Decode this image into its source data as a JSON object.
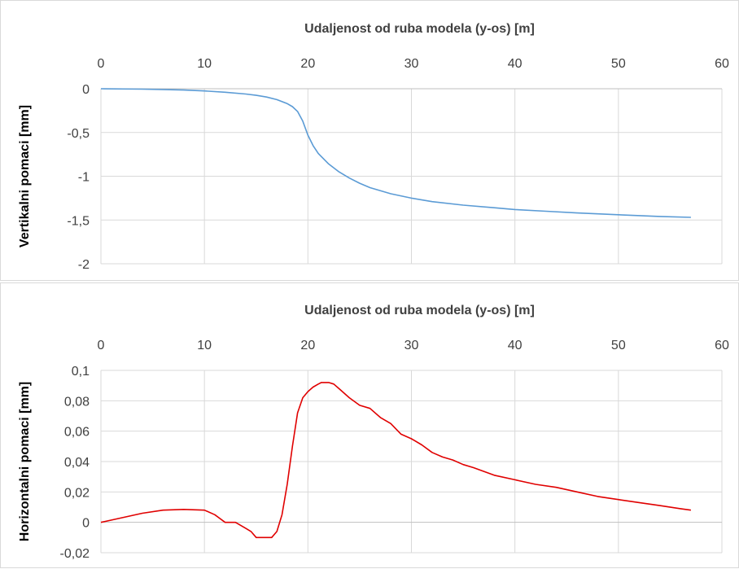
{
  "chart_data": [
    {
      "type": "line",
      "title": "Udaljenost od ruba modela (y-os) [m]",
      "xlabel": "Udaljenost od ruba modela (y-os) [m]",
      "ylabel": "Vertikalni pomaci [mm]",
      "x_axis_position": "top",
      "xlim": [
        0,
        60
      ],
      "ylim": [
        -2,
        0
      ],
      "x_ticks": [
        "0",
        "10",
        "20",
        "30",
        "40",
        "50",
        "60"
      ],
      "y_ticks": [
        "0",
        "-0,5",
        "-1",
        "-1,5",
        "-2"
      ],
      "grid": true,
      "series": [
        {
          "color": "#5b9bd5",
          "x": [
            0,
            4,
            8,
            10,
            12,
            14,
            15,
            16,
            17,
            18,
            18.5,
            19,
            19.5,
            20,
            20.5,
            21,
            22,
            23,
            24,
            25,
            26,
            28,
            30,
            32,
            35,
            38,
            40,
            43,
            46,
            50,
            54,
            57
          ],
          "y": [
            0,
            -0.005,
            -0.015,
            -0.025,
            -0.04,
            -0.06,
            -0.075,
            -0.095,
            -0.125,
            -0.17,
            -0.205,
            -0.26,
            -0.37,
            -0.53,
            -0.65,
            -0.74,
            -0.86,
            -0.95,
            -1.02,
            -1.08,
            -1.13,
            -1.2,
            -1.25,
            -1.29,
            -1.33,
            -1.36,
            -1.38,
            -1.4,
            -1.42,
            -1.44,
            -1.46,
            -1.47
          ]
        }
      ]
    },
    {
      "type": "line",
      "title": "Udaljenost od ruba modela (y-os) [m]",
      "xlabel": "Udaljenost od ruba modela (y-os) [m]",
      "ylabel": "Horizontalni pomaci [mm]",
      "x_axis_position": "top",
      "xlim": [
        0,
        60
      ],
      "ylim": [
        -0.02,
        0.1
      ],
      "x_ticks": [
        "0",
        "10",
        "20",
        "30",
        "40",
        "50",
        "60"
      ],
      "y_ticks": [
        "0,1",
        "0,08",
        "0,06",
        "0,04",
        "0,02",
        "0",
        "-0,02"
      ],
      "grid": true,
      "series": [
        {
          "color": "#e00000",
          "x": [
            0,
            2,
            4,
            6,
            8,
            10,
            11,
            12,
            12.5,
            13,
            14,
            14.5,
            15,
            16,
            16.5,
            17,
            17.5,
            18,
            18.5,
            19,
            19.5,
            20,
            20.5,
            21,
            21.3,
            21.6,
            22,
            22.5,
            23,
            24,
            25,
            26,
            27,
            28,
            29,
            30,
            31,
            32,
            33,
            34,
            35,
            36,
            38,
            40,
            42,
            44,
            46,
            48,
            50,
            52,
            54,
            56,
            57
          ],
          "y": [
            0,
            0.003,
            0.006,
            0.008,
            0.0085,
            0.008,
            0.005,
            0.0,
            0.0,
            0.0,
            -0.004,
            -0.006,
            -0.01,
            -0.01,
            -0.01,
            -0.006,
            0.005,
            0.025,
            0.05,
            0.072,
            0.082,
            0.086,
            0.089,
            0.091,
            0.092,
            0.092,
            0.092,
            0.091,
            0.088,
            0.082,
            0.077,
            0.075,
            0.069,
            0.065,
            0.058,
            0.055,
            0.051,
            0.046,
            0.043,
            0.041,
            0.038,
            0.036,
            0.031,
            0.028,
            0.025,
            0.023,
            0.02,
            0.017,
            0.015,
            0.013,
            0.011,
            0.009,
            0.008
          ]
        }
      ]
    }
  ]
}
